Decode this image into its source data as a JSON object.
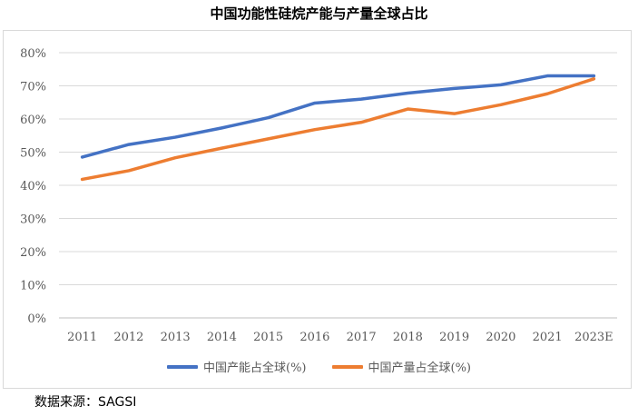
{
  "chart_data": {
    "type": "line",
    "title": "中国功能性硅烷产能与产量全球占比",
    "source": "数据来源：SAGSI",
    "categories": [
      "2011",
      "2012",
      "2013",
      "2014",
      "2015",
      "2016",
      "2017",
      "2018",
      "2019",
      "2020",
      "2021",
      "2023E"
    ],
    "ylim": [
      0,
      80
    ],
    "ytick_labels": [
      "0%",
      "10%",
      "20%",
      "30%",
      "40%",
      "50%",
      "60%",
      "70%",
      "80%"
    ],
    "grid": true,
    "legend_position": "bottom",
    "series": [
      {
        "name": "中国产能占全球(%)",
        "color": "#4472C4",
        "values": [
          48.5,
          52.3,
          54.5,
          57.3,
          60.4,
          64.8,
          66.0,
          67.8,
          69.2,
          70.3,
          73.0,
          73.0
        ]
      },
      {
        "name": "中国产量占全球(%)",
        "color": "#ED7D31",
        "values": [
          41.8,
          44.4,
          48.3,
          51.2,
          54.0,
          56.8,
          59.0,
          63.0,
          61.6,
          64.3,
          67.6,
          72.1
        ]
      }
    ]
  }
}
